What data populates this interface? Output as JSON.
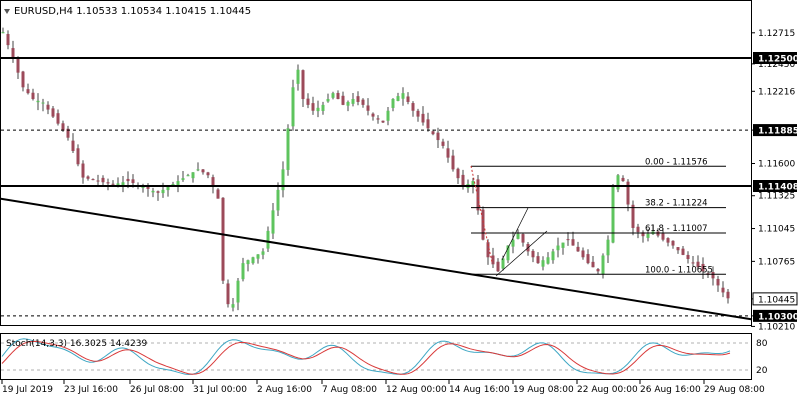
{
  "header": {
    "symbol_line": "EURUSD,H4  1.10533 1.10534 1.10415 1.10445"
  },
  "price_axis": {
    "ticks": [
      "1.12715",
      "1.12450",
      "1.12216",
      "1.11885",
      "1.11600",
      "1.11325",
      "1.11045",
      "1.10765",
      "1.10445",
      "1.10300",
      "1.10210"
    ]
  },
  "time_axis": {
    "labels": [
      "19 Jul 2019",
      "23 Jul 16:00",
      "26 Jul 08:00",
      "31 Jul 00:00",
      "2 Aug 16:00",
      "7 Aug 08:00",
      "12 Aug 00:00",
      "14 Aug 16:00",
      "19 Aug 08:00",
      "22 Aug 00:00",
      "26 Aug 16:00",
      "29 Aug 08:00"
    ]
  },
  "horizontal_levels": [
    {
      "price": 1.125,
      "label": "1.12500",
      "style": "solid"
    },
    {
      "price": 1.11885,
      "label": "1.11885",
      "style": "dashed"
    },
    {
      "price": 1.11408,
      "label": "1.11408",
      "style": "solid"
    },
    {
      "price": 1.103,
      "label": "1.10300",
      "style": "dashed"
    }
  ],
  "current_price": {
    "value": 1.10445,
    "label": "1.10445"
  },
  "fibonacci": {
    "levels": [
      {
        "ratio": "0.00",
        "price": 1.11576,
        "label": "0.00 - 1.11576"
      },
      {
        "ratio": "38.2",
        "price": 1.11224,
        "label": "38.2 - 1.11224"
      },
      {
        "ratio": "61.8",
        "price": 1.11007,
        "label": "61.8 - 1.11007"
      },
      {
        "ratio": "100.0",
        "price": 1.10655,
        "label": "100.0 - 1.10655"
      }
    ]
  },
  "trendline": {
    "from_price": 1.113,
    "to_price": 1.1027
  },
  "stochastic": {
    "label": "Stoch(14,3,3) 16.3025 14.4239",
    "ticks": [
      "80",
      "20"
    ],
    "main_color": "#3fa7c4",
    "signal_color": "#d93a3a"
  },
  "colors": {
    "bull": "#5ec45e",
    "bear": "#9c4a5a",
    "wick": "#444444",
    "level": "#000000"
  },
  "chart_data": {
    "type": "candlestick",
    "symbol": "EURUSD",
    "timeframe": "H4",
    "last_ohlc": {
      "open": 1.10533,
      "high": 1.10534,
      "low": 1.10415,
      "close": 1.10445
    },
    "ylim": [
      1.1021,
      1.1285
    ],
    "close_path": [
      [
        0,
        1.1272
      ],
      [
        2,
        1.125
      ],
      [
        4,
        1.1225
      ],
      [
        6,
        1.1215
      ],
      [
        8,
        1.1212
      ],
      [
        10,
        1.12
      ],
      [
        13,
        1.1182
      ],
      [
        16,
        1.1148
      ],
      [
        19,
        1.1145
      ],
      [
        22,
        1.1142
      ],
      [
        25,
        1.1145
      ],
      [
        28,
        1.114
      ],
      [
        31,
        1.1135
      ],
      [
        33,
        1.114
      ],
      [
        35,
        1.1145
      ],
      [
        37,
        1.115
      ],
      [
        39,
        1.1155
      ],
      [
        41,
        1.115
      ],
      [
        43,
        1.113
      ],
      [
        44,
        1.106
      ],
      [
        45,
        1.104
      ],
      [
        46,
        1.104
      ],
      [
        47,
        1.106
      ],
      [
        48,
        1.1075
      ],
      [
        50,
        1.108
      ],
      [
        52,
        1.1085
      ],
      [
        54,
        1.112
      ],
      [
        56,
        1.1155
      ],
      [
        57,
        1.119
      ],
      [
        58,
        1.1225
      ],
      [
        59,
        1.124
      ],
      [
        60,
        1.1215
      ],
      [
        62,
        1.1205
      ],
      [
        64,
        1.121
      ],
      [
        66,
        1.122
      ],
      [
        68,
        1.121
      ],
      [
        70,
        1.1215
      ],
      [
        72,
        1.121
      ],
      [
        74,
        1.12
      ],
      [
        76,
        1.1195
      ],
      [
        78,
        1.1215
      ],
      [
        80,
        1.122
      ],
      [
        82,
        1.1205
      ],
      [
        84,
        1.1195
      ],
      [
        86,
        1.1185
      ],
      [
        88,
        1.1175
      ],
      [
        90,
        1.1155
      ],
      [
        92,
        1.114
      ],
      [
        94,
        1.1145
      ],
      [
        95,
        1.112
      ],
      [
        96,
        1.1095
      ],
      [
        97,
        1.108
      ],
      [
        99,
        1.1068
      ],
      [
        101,
        1.109
      ],
      [
        103,
        1.11
      ],
      [
        105,
        1.1085
      ],
      [
        107,
        1.1075
      ],
      [
        109,
        1.108
      ],
      [
        111,
        1.109
      ],
      [
        113,
        1.1095
      ],
      [
        115,
        1.1085
      ],
      [
        117,
        1.1075
      ],
      [
        119,
        1.1068
      ],
      [
        121,
        1.1095
      ],
      [
        122,
        1.114
      ],
      [
        123,
        1.115
      ],
      [
        124,
        1.1145
      ],
      [
        125,
        1.1125
      ],
      [
        126,
        1.1105
      ],
      [
        128,
        1.1098
      ],
      [
        130,
        1.1102
      ],
      [
        132,
        1.1095
      ],
      [
        134,
        1.109
      ],
      [
        136,
        1.1082
      ],
      [
        138,
        1.1075
      ],
      [
        140,
        1.1068
      ],
      [
        142,
        1.1062
      ],
      [
        144,
        1.105
      ],
      [
        145,
        1.1045
      ]
    ]
  }
}
